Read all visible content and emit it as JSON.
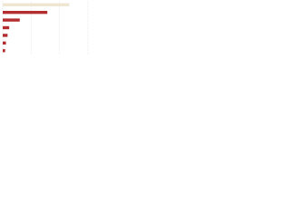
{
  "chart_data": {
    "type": "hbar",
    "categories": [
      null,
      null,
      null,
      null,
      null,
      null,
      null
    ],
    "values": [
      82,
      55,
      21,
      8,
      6,
      4,
      3
    ],
    "colors": [
      "#efe6d2",
      "#b32d2e",
      "#b32d2e",
      "#b32d2e",
      "#b32d2e",
      "#b32d2e",
      "#b32d2e"
    ],
    "xlim": [
      0,
      105
    ],
    "xticks": [
      0,
      35,
      70,
      105
    ],
    "grid": true
  }
}
